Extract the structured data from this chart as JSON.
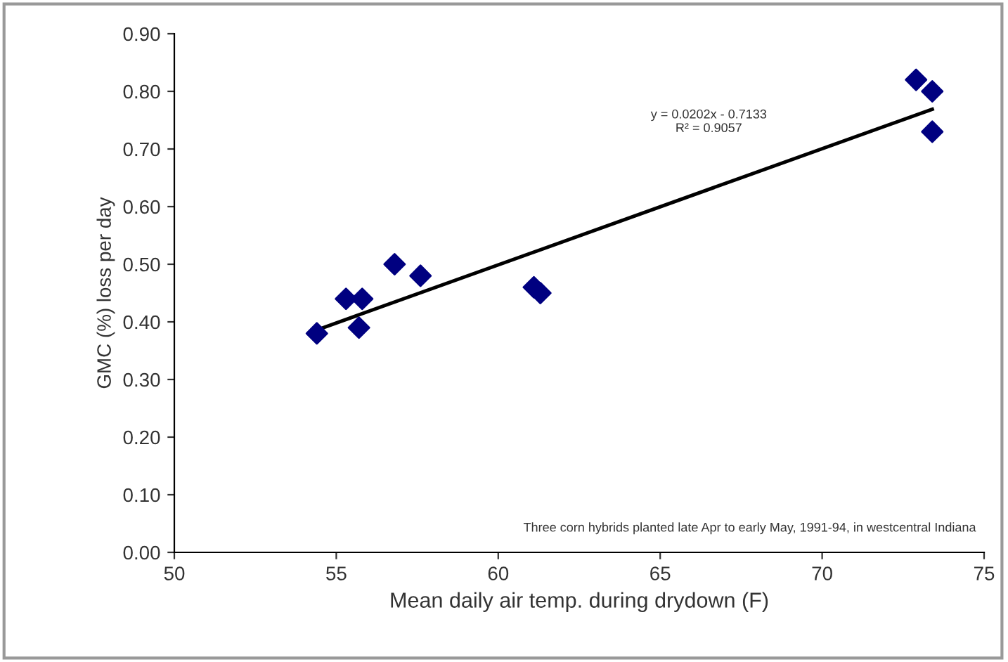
{
  "chart_data": {
    "type": "scatter",
    "xlabel": "Mean daily air temp. during drydown (F)",
    "ylabel": "GMC (%) loss per day",
    "x": [
      54.4,
      55.3,
      55.8,
      55.7,
      56.8,
      57.6,
      61.1,
      61.3,
      72.9,
      73.4,
      73.4
    ],
    "series": [
      {
        "color": "#000080",
        "marker": "diamond",
        "values": [
          0.38,
          0.44,
          0.44,
          0.39,
          0.5,
          0.48,
          0.46,
          0.45,
          0.82,
          0.8,
          0.73
        ]
      },
      {
        "type": "line",
        "color": "#000000",
        "marker": "none",
        "x": [
          54.4,
          73.4
        ],
        "values": [
          0.386,
          0.769
        ]
      }
    ],
    "xlim": [
      50,
      75
    ],
    "xticks": [
      50,
      55,
      60,
      65,
      70,
      75
    ],
    "ylim": [
      0,
      0.9
    ],
    "yticks": [
      {
        "value": 0,
        "label": "0.00"
      },
      {
        "value": 0.1,
        "label": "0.10"
      },
      {
        "value": 0.2,
        "label": "0.20"
      },
      {
        "value": 0.3,
        "label": "0.30"
      },
      {
        "value": 0.4,
        "label": "0.40"
      },
      {
        "value": 0.5,
        "label": "0.50"
      },
      {
        "value": 0.6,
        "label": "0.60"
      },
      {
        "value": 0.7,
        "label": "0.70"
      },
      {
        "value": 0.8,
        "label": "0.80"
      },
      {
        "value": 0.9,
        "label": "0.90"
      }
    ],
    "grid": false,
    "legend": false,
    "annotations": [
      "y = 0.0202x - 0.7133\nR² = 0.9057",
      "Three corn hybrids planted late Apr to early May, 1991-94, in westcentral Indiana"
    ]
  }
}
